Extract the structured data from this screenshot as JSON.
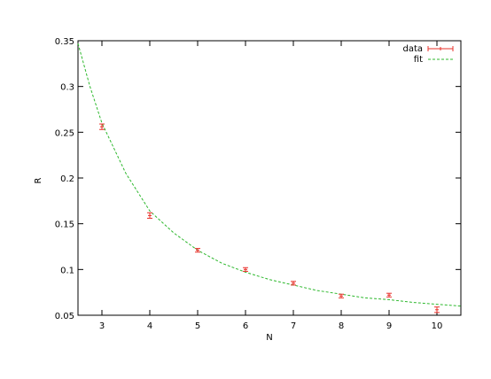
{
  "chart_data": {
    "type": "scatter",
    "xlabel": "N",
    "ylabel": "R",
    "xlim": [
      2.5,
      10.5
    ],
    "ylim": [
      0.05,
      0.35
    ],
    "x_ticks": [
      3,
      4,
      5,
      6,
      7,
      8,
      9,
      10
    ],
    "y_ticks": [
      0.05,
      0.1,
      0.15,
      0.2,
      0.25,
      0.3,
      0.35
    ],
    "y_tick_labels": [
      "0.05",
      "0.1",
      "0.15",
      "0.2",
      "0.25",
      "0.3",
      "0.35"
    ],
    "grid": false,
    "legend_position": "top-right",
    "series": [
      {
        "name": "data",
        "kind": "errorbars",
        "color": "#e8302a",
        "x": [
          3,
          4,
          5,
          6,
          7,
          8,
          9,
          10
        ],
        "y": [
          0.256,
          0.159,
          0.121,
          0.1,
          0.085,
          0.071,
          0.072,
          0.056
        ],
        "yerr": [
          0.003,
          0.003,
          0.002,
          0.002,
          0.002,
          0.002,
          0.002,
          0.003
        ]
      },
      {
        "name": "fit",
        "kind": "line",
        "style": "dashed",
        "color": "#2db82d",
        "x": [
          2.5,
          2.75,
          3,
          3.5,
          4,
          4.5,
          5,
          5.5,
          6,
          6.5,
          7,
          7.5,
          8,
          8.5,
          9,
          9.5,
          10,
          10.5
        ],
        "y": [
          0.347,
          0.3,
          0.26,
          0.205,
          0.164,
          0.14,
          0.121,
          0.107,
          0.097,
          0.089,
          0.083,
          0.077,
          0.073,
          0.069,
          0.067,
          0.064,
          0.062,
          0.06
        ]
      }
    ]
  }
}
